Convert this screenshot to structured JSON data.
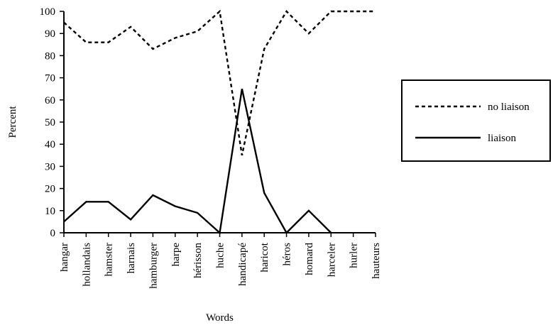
{
  "chart_data": {
    "type": "line",
    "title": "",
    "xlabel": "Words",
    "ylabel": "Percent",
    "ylim": [
      0,
      100
    ],
    "yticks": [
      0,
      10,
      20,
      30,
      40,
      50,
      60,
      70,
      80,
      90,
      100
    ],
    "grid": false,
    "legend_position": "right",
    "categories": [
      "hangar",
      "hollandais",
      "hamster",
      "harnais",
      "hamburger",
      "harpe",
      "hérisson",
      "huche",
      "handicapé",
      "haricot",
      "héros",
      "homard",
      "harceler",
      "hurler",
      "hauteurs"
    ],
    "series": [
      {
        "name": "no liaison",
        "style": "dashed",
        "color": "#000000",
        "values": [
          95,
          86,
          86,
          93,
          83,
          88,
          91,
          100,
          35,
          83,
          100,
          90,
          100,
          100,
          100
        ]
      },
      {
        "name": "liaison",
        "style": "solid",
        "color": "#000000",
        "values": [
          5,
          14,
          14,
          6,
          17,
          12,
          9,
          0,
          65,
          18,
          0,
          10,
          0,
          null,
          null
        ]
      }
    ]
  }
}
